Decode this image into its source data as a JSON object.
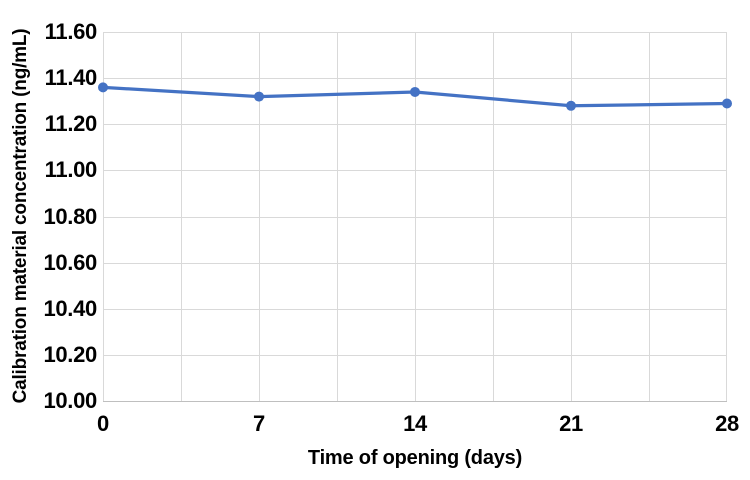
{
  "chart_data": {
    "type": "line",
    "title": "",
    "xlabel": "Time of opening (days)",
    "ylabel": "Calibration material concentration (ng/mL)",
    "x": [
      0,
      7,
      14,
      21,
      28
    ],
    "series": [
      {
        "name": "Calibration material concentration",
        "values": [
          11.36,
          11.32,
          11.34,
          11.28,
          11.29
        ]
      }
    ],
    "xlim": [
      0,
      28
    ],
    "ylim": [
      10.0,
      11.6
    ],
    "x_tick_values": [
      0,
      7,
      14,
      21,
      28
    ],
    "x_tick_labels": [
      "0",
      "7",
      "14",
      "21",
      "28"
    ],
    "x_minor_gridline_values": [
      0,
      3.5,
      7,
      10.5,
      14,
      17.5,
      21,
      24.5,
      28
    ],
    "y_tick_values": [
      10.0,
      10.2,
      10.4,
      10.6,
      10.8,
      11.0,
      11.2,
      11.4,
      11.6
    ],
    "y_tick_labels": [
      "10.00",
      "10.20",
      "10.40",
      "10.60",
      "10.80",
      "11.00",
      "11.20",
      "11.40",
      "11.60"
    ],
    "grid": true,
    "legend": "none",
    "marker": "circle",
    "marker_radius": 5,
    "line_width": 3.25,
    "colors": {
      "series": "#4472C4",
      "gridline": "#D9D9D9",
      "axis_line": "#BFBFBF",
      "text": "#000000",
      "background": "#FFFFFF"
    }
  }
}
